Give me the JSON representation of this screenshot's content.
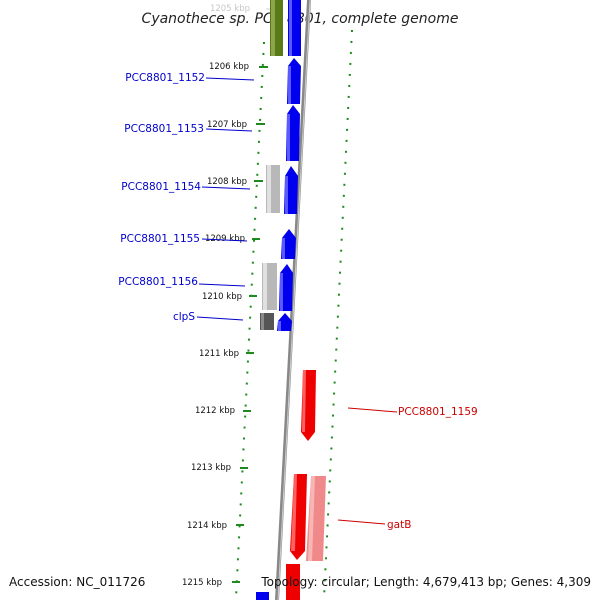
{
  "title": "Cyanothece sp. PCC 8801, complete genome",
  "footer": {
    "accession": "Accession: NC_011726",
    "summary": "Topology: circular; Length: 4,679,413 bp; Genes: 4,309"
  },
  "ticks": [
    {
      "label": "1205 kbp",
      "faint": true
    },
    {
      "label": "1206 kbp"
    },
    {
      "label": "1207 kbp"
    },
    {
      "label": "1208 kbp"
    },
    {
      "label": "1209 kbp"
    },
    {
      "label": "1210 kbp"
    },
    {
      "label": "1211 kbp"
    },
    {
      "label": "1212 kbp"
    },
    {
      "label": "1213 kbp"
    },
    {
      "label": "1214 kbp"
    },
    {
      "label": "1215 kbp"
    }
  ],
  "gene_labels": [
    {
      "text": "PCC8801_1152",
      "color": "#0000cc"
    },
    {
      "text": "PCC8801_1153",
      "color": "#0000cc"
    },
    {
      "text": "PCC8801_1154",
      "color": "#0000cc"
    },
    {
      "text": "PCC8801_1155",
      "color": "#0000cc"
    },
    {
      "text": "PCC8801_1156",
      "color": "#0000cc"
    },
    {
      "text": "clpS",
      "color": "#0000cc"
    },
    {
      "text": "PCC8801_1159",
      "color": "#cc0000"
    },
    {
      "text": "gatB",
      "color": "#cc0000"
    }
  ],
  "colors": {
    "forward_cds": "#0000ee",
    "reverse_cds": "#ee0000",
    "reverse_cds_light": "#f08a8a",
    "gray_feature": "#b8b8b8",
    "dark_feature": "#555555",
    "olive_feature": "#5a7a1a",
    "backbone": "#888888",
    "dotted_ring": "#1e8a1e"
  }
}
